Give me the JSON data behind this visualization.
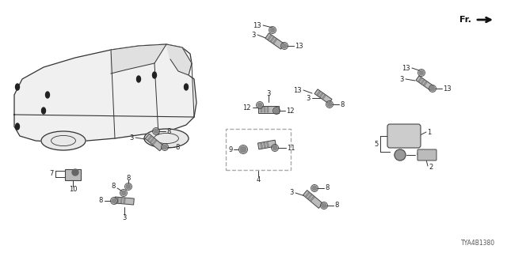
{
  "diagram_code": "TYA4B1380",
  "bg_color": "#ffffff",
  "line_color": "#333333",
  "text_color": "#222222",
  "fig_width": 6.4,
  "fig_height": 3.2,
  "dpi": 100
}
